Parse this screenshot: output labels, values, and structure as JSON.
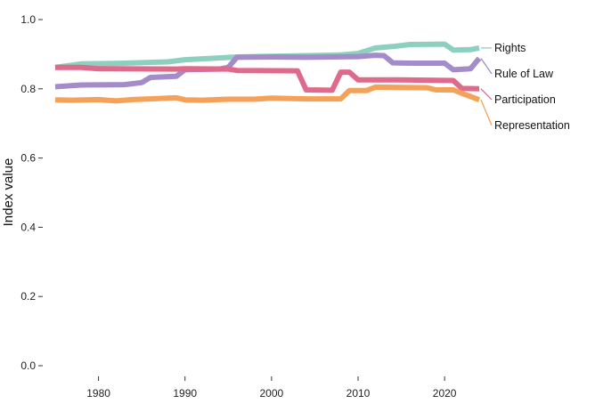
{
  "chart_data": {
    "type": "line",
    "title": "",
    "xlabel": "",
    "ylabel": "Index value",
    "xlim": [
      1975,
      2024
    ],
    "ylim": [
      0,
      1
    ],
    "x_ticks": [
      1980,
      1990,
      2000,
      2010,
      2020
    ],
    "y_ticks": [
      0.0,
      0.2,
      0.4,
      0.6,
      0.8,
      1.0
    ],
    "y_tick_labels": [
      "0.0",
      "0.2",
      "0.4",
      "0.6",
      "0.8",
      "1.0"
    ],
    "grid": false,
    "legend": "direct-labels-right",
    "series": [
      {
        "name": "Rights",
        "color": "#8ed0bf",
        "points": [
          [
            1975,
            0.862
          ],
          [
            1978,
            0.872
          ],
          [
            1983,
            0.874
          ],
          [
            1988,
            0.878
          ],
          [
            1990,
            0.884
          ],
          [
            1993,
            0.888
          ],
          [
            1996,
            0.892
          ],
          [
            2000,
            0.894
          ],
          [
            2004,
            0.896
          ],
          [
            2008,
            0.898
          ],
          [
            2010,
            0.902
          ],
          [
            2012,
            0.918
          ],
          [
            2014,
            0.922
          ],
          [
            2016,
            0.928
          ],
          [
            2020,
            0.929
          ],
          [
            2021,
            0.912
          ],
          [
            2023,
            0.913
          ],
          [
            2024,
            0.918
          ]
        ]
      },
      {
        "name": "Rule of Law",
        "color": "#a48bc9",
        "points": [
          [
            1975,
            0.806
          ],
          [
            1978,
            0.811
          ],
          [
            1983,
            0.812
          ],
          [
            1985,
            0.818
          ],
          [
            1986,
            0.833
          ],
          [
            1989,
            0.836
          ],
          [
            1990,
            0.855
          ],
          [
            1994,
            0.857
          ],
          [
            1995,
            0.862
          ],
          [
            1996,
            0.891
          ],
          [
            2000,
            0.892
          ],
          [
            2004,
            0.891
          ],
          [
            2010,
            0.893
          ],
          [
            2012,
            0.897
          ],
          [
            2013,
            0.896
          ],
          [
            2014,
            0.875
          ],
          [
            2016,
            0.874
          ],
          [
            2020,
            0.874
          ],
          [
            2021,
            0.855
          ],
          [
            2023,
            0.858
          ],
          [
            2024,
            0.888
          ]
        ]
      },
      {
        "name": "Participation",
        "color": "#e06a8b",
        "points": [
          [
            1975,
            0.862
          ],
          [
            1978,
            0.862
          ],
          [
            1980,
            0.858
          ],
          [
            1989,
            0.857
          ],
          [
            1990,
            0.858
          ],
          [
            1995,
            0.857
          ],
          [
            1996,
            0.853
          ],
          [
            2003,
            0.852
          ],
          [
            2004,
            0.797
          ],
          [
            2007,
            0.796
          ],
          [
            2008,
            0.848
          ],
          [
            2009,
            0.848
          ],
          [
            2010,
            0.826
          ],
          [
            2015,
            0.826
          ],
          [
            2018,
            0.825
          ],
          [
            2021,
            0.824
          ],
          [
            2022,
            0.801
          ],
          [
            2024,
            0.8
          ]
        ]
      },
      {
        "name": "Representation",
        "color": "#f4a259",
        "points": [
          [
            1975,
            0.768
          ],
          [
            1977,
            0.767
          ],
          [
            1980,
            0.769
          ],
          [
            1982,
            0.765
          ],
          [
            1984,
            0.769
          ],
          [
            1986,
            0.771
          ],
          [
            1989,
            0.774
          ],
          [
            1990,
            0.768
          ],
          [
            1992,
            0.767
          ],
          [
            1995,
            0.77
          ],
          [
            1998,
            0.77
          ],
          [
            2000,
            0.773
          ],
          [
            2004,
            0.771
          ],
          [
            2008,
            0.771
          ],
          [
            2009,
            0.795
          ],
          [
            2011,
            0.795
          ],
          [
            2012,
            0.805
          ],
          [
            2018,
            0.803
          ],
          [
            2019,
            0.797
          ],
          [
            2021,
            0.797
          ],
          [
            2022,
            0.787
          ],
          [
            2023,
            0.778
          ],
          [
            2024,
            0.768
          ]
        ]
      }
    ]
  }
}
